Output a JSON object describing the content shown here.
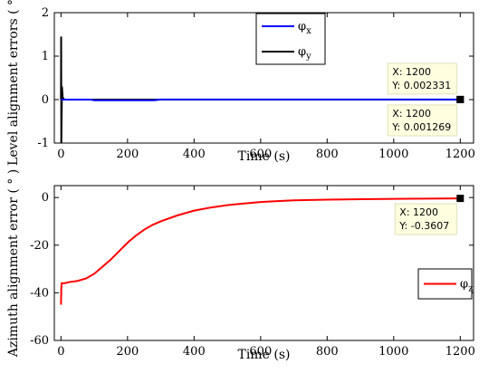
{
  "chart_data": [
    {
      "type": "line",
      "ylabel": "Level alignment errors ( ° )",
      "xlabel": "Time (s)",
      "xlim": [
        -20,
        1240
      ],
      "ylim": [
        -1,
        2
      ],
      "xticks": [
        "0",
        "200",
        "400",
        "600",
        "800",
        "1000",
        "1200"
      ],
      "yticks": [
        "-1",
        "0",
        "1",
        "2"
      ],
      "grid": false,
      "legend": "top-center",
      "series": [
        {
          "name": "φx",
          "legend_symbol": "φ",
          "legend_sub": "x",
          "color": "#0000ff",
          "x": [
            0,
            90,
            100,
            150,
            200,
            250,
            280,
            300,
            400,
            600,
            800,
            1000,
            1200
          ],
          "y": [
            0,
            0,
            -0.015,
            -0.015,
            -0.015,
            -0.015,
            -0.015,
            0.002,
            0.002,
            0.002,
            0.002,
            0.002,
            0.002331
          ]
        },
        {
          "name": "φy",
          "legend_symbol": "φ",
          "legend_sub": "y",
          "color": "#000000",
          "x": [
            0,
            0.5,
            1,
            3,
            5,
            10,
            50,
            100,
            200,
            400,
            600,
            800,
            1000,
            1200
          ],
          "y": [
            0,
            1.45,
            -1.0,
            0.3,
            0.05,
            0.001,
            0.001,
            0.001,
            0.001,
            0.001,
            0.001,
            0.001,
            0.001,
            0.001269
          ]
        }
      ],
      "datatips": [
        {
          "x_text": "X: 1200",
          "y_text": "Y: 0.002331",
          "x": 1200,
          "y": 0.002331,
          "placement": "above"
        },
        {
          "x_text": "X: 1200",
          "y_text": "Y: 0.001269",
          "x": 1200,
          "y": 0.001269,
          "placement": "below"
        }
      ]
    },
    {
      "type": "line",
      "ylabel": "Azimuth alignment error ( ° )",
      "xlabel": "Time (s)",
      "xlim": [
        -20,
        1240
      ],
      "ylim": [
        -60,
        5
      ],
      "xticks": [
        "0",
        "200",
        "400",
        "600",
        "800",
        "1000",
        "1200"
      ],
      "yticks": [
        "-60",
        "-40",
        "-20",
        "0"
      ],
      "grid": false,
      "legend": "bottom-right",
      "series": [
        {
          "name": "φz",
          "legend_symbol": "φ",
          "legend_sub": "z",
          "color": "#ff0000",
          "x": [
            0,
            1,
            2,
            5,
            10,
            25,
            50,
            75,
            100,
            125,
            150,
            175,
            200,
            225,
            250,
            275,
            300,
            350,
            400,
            450,
            500,
            550,
            600,
            650,
            700,
            800,
            900,
            1000,
            1100,
            1200
          ],
          "y": [
            -45,
            -38,
            -36,
            -36,
            -36,
            -35.5,
            -35,
            -34,
            -32,
            -29,
            -26,
            -22.5,
            -19,
            -16,
            -13.5,
            -11.5,
            -10,
            -7.5,
            -5.5,
            -4.2,
            -3.2,
            -2.5,
            -1.9,
            -1.5,
            -1.2,
            -0.9,
            -0.7,
            -0.55,
            -0.45,
            -0.3607
          ]
        }
      ],
      "datatips": [
        {
          "x_text": "X: 1200",
          "y_text": "Y: -0.3607",
          "x": 1200,
          "y": -0.3607,
          "placement": "below"
        }
      ]
    }
  ]
}
